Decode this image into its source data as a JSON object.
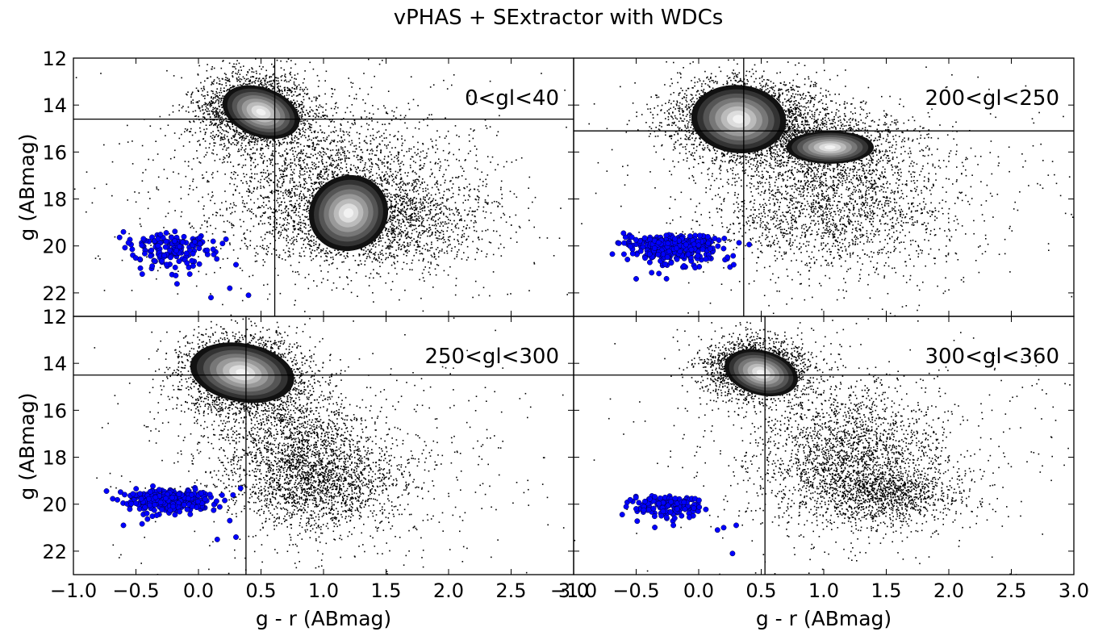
{
  "figure": {
    "title": "vPHAS + SExtractor with WDCs",
    "xlabel": "g - r (ABmag)",
    "ylabel": "g (ABmag)"
  },
  "chart_data": [
    {
      "type": "scatter",
      "label": "0<gl<40",
      "xlim": [
        -1.0,
        3.0
      ],
      "ylim": [
        23,
        12
      ],
      "xticks": [
        "−1.0",
        "−0.5",
        "0.0",
        "0.5",
        "1.0",
        "1.5",
        "2.0",
        "2.5",
        "3.0"
      ],
      "yticks": [
        "12",
        "14",
        "16",
        "18",
        "20",
        "22"
      ],
      "cut_lines": {
        "x": 0.61,
        "y": 14.6
      },
      "stars": {
        "color": "#000000",
        "components": [
          {
            "cx": 0.45,
            "cy": 14.2,
            "sx": 0.22,
            "sy": 0.8,
            "count": 2200
          },
          {
            "cx": 1.05,
            "cy": 17.2,
            "sx": 0.45,
            "sy": 1.6,
            "count": 1800
          },
          {
            "cx": 1.45,
            "cy": 18.9,
            "sx": 0.45,
            "sy": 1.0,
            "count": 1600
          },
          {
            "cx": 1.0,
            "cy": 17.5,
            "sx": 0.9,
            "sy": 2.6,
            "count": 700
          }
        ],
        "density_cores": [
          {
            "cx": 0.5,
            "cy": 14.3,
            "rx": 0.32,
            "ry": 1.05,
            "rot": 20
          },
          {
            "cx": 1.2,
            "cy": 18.6,
            "rx": 0.32,
            "ry": 1.6,
            "rot": -25
          }
        ]
      },
      "wdcs": {
        "color": "#0000ff",
        "center": [
          -0.2,
          19.8
        ],
        "spread": [
          0.15,
          0.55
        ],
        "count": 170,
        "outliers": [
          [
            0.1,
            22.2
          ],
          [
            0.4,
            22.1
          ],
          [
            0.25,
            21.8
          ],
          [
            0.3,
            20.8
          ],
          [
            -0.6,
            19.4
          ],
          [
            -0.45,
            21.2
          ]
        ]
      }
    },
    {
      "type": "scatter",
      "label": "200<gl<250",
      "xlim": [
        -1.0,
        3.0
      ],
      "ylim": [
        23,
        12
      ],
      "xticks": [
        "−1.0",
        "−0.5",
        "0.0",
        "0.5",
        "1.0",
        "1.5",
        "2.0",
        "2.5",
        "3.0"
      ],
      "yticks": [
        "12",
        "14",
        "16",
        "18",
        "20",
        "22"
      ],
      "cut_lines": {
        "x": 0.36,
        "y": 15.1
      },
      "stars": {
        "color": "#000000",
        "components": [
          {
            "cx": 0.35,
            "cy": 14.6,
            "sx": 0.3,
            "sy": 0.9,
            "count": 2600
          },
          {
            "cx": 1.0,
            "cy": 15.7,
            "sx": 0.35,
            "sy": 0.7,
            "count": 1200
          },
          {
            "cx": 1.05,
            "cy": 18.3,
            "sx": 0.45,
            "sy": 1.4,
            "count": 1700
          },
          {
            "cx": 1.1,
            "cy": 17.5,
            "sx": 0.9,
            "sy": 2.4,
            "count": 600
          }
        ],
        "density_cores": [
          {
            "cx": 0.32,
            "cy": 14.6,
            "rx": 0.38,
            "ry": 1.45,
            "rot": 5
          },
          {
            "cx": 1.05,
            "cy": 15.8,
            "rx": 0.35,
            "ry": 0.7,
            "rot": 0
          }
        ]
      },
      "wdcs": {
        "color": "#0000ff",
        "center": [
          -0.2,
          19.8
        ],
        "spread": [
          0.18,
          0.45
        ],
        "count": 420,
        "outliers": [
          [
            0.25,
            20.9
          ],
          [
            0.28,
            20.8
          ],
          [
            -0.5,
            21.4
          ]
        ]
      }
    },
    {
      "type": "scatter",
      "label": "250<gl<300",
      "xlim": [
        -1.0,
        3.0
      ],
      "ylim": [
        23,
        12
      ],
      "xticks": [
        "−1.0",
        "−0.5",
        "0.0",
        "0.5",
        "1.0",
        "1.5",
        "2.0",
        "2.5",
        "3.0"
      ],
      "yticks": [
        "12",
        "14",
        "16",
        "18",
        "20",
        "22"
      ],
      "cut_lines": {
        "x": 0.38,
        "y": 14.5
      },
      "stars": {
        "color": "#000000",
        "components": [
          {
            "cx": 0.35,
            "cy": 14.5,
            "sx": 0.25,
            "sy": 0.9,
            "count": 2400
          },
          {
            "cx": 0.95,
            "cy": 18.9,
            "sx": 0.35,
            "sy": 1.1,
            "count": 1800
          },
          {
            "cx": 0.7,
            "cy": 17.0,
            "sx": 0.3,
            "sy": 1.2,
            "count": 900
          },
          {
            "cx": 1.0,
            "cy": 18.0,
            "sx": 0.9,
            "sy": 2.4,
            "count": 600
          }
        ],
        "density_cores": [
          {
            "cx": 0.35,
            "cy": 14.4,
            "rx": 0.42,
            "ry": 1.25,
            "rot": 10
          }
        ]
      },
      "wdcs": {
        "color": "#0000ff",
        "center": [
          -0.25,
          19.6
        ],
        "spread": [
          0.18,
          0.4
        ],
        "count": 340,
        "outliers": [
          [
            0.3,
            21.4
          ],
          [
            0.15,
            21.5
          ],
          [
            0.25,
            20.7
          ],
          [
            -0.6,
            20.9
          ]
        ]
      }
    },
    {
      "type": "scatter",
      "label": "300<gl<360",
      "xlim": [
        -1.0,
        3.0
      ],
      "ylim": [
        23,
        12
      ],
      "xticks": [
        "−1.0",
        "−0.5",
        "0.0",
        "0.5",
        "1.0",
        "1.5",
        "2.0",
        "2.5",
        "3.0"
      ],
      "yticks": [
        "12",
        "14",
        "16",
        "18",
        "20",
        "22"
      ],
      "cut_lines": {
        "x": 0.53,
        "y": 14.5
      },
      "stars": {
        "color": "#000000",
        "components": [
          {
            "cx": 0.45,
            "cy": 14.2,
            "sx": 0.2,
            "sy": 0.65,
            "count": 2000
          },
          {
            "cx": 1.2,
            "cy": 18.0,
            "sx": 0.35,
            "sy": 1.5,
            "count": 2000
          },
          {
            "cx": 1.55,
            "cy": 19.6,
            "sx": 0.3,
            "sy": 0.6,
            "count": 800
          },
          {
            "cx": 1.1,
            "cy": 17.5,
            "sx": 0.8,
            "sy": 2.4,
            "count": 600
          }
        ],
        "density_cores": [
          {
            "cx": 0.5,
            "cy": 14.4,
            "rx": 0.3,
            "ry": 0.95,
            "rot": 15
          }
        ]
      },
      "wdcs": {
        "color": "#0000ff",
        "center": [
          -0.25,
          19.9
        ],
        "spread": [
          0.14,
          0.4
        ],
        "count": 150,
        "outliers": [
          [
            0.27,
            22.1
          ],
          [
            0.3,
            20.9
          ],
          [
            0.2,
            21.0
          ],
          [
            0.15,
            21.1
          ],
          [
            -0.5,
            20.2
          ]
        ]
      }
    }
  ]
}
